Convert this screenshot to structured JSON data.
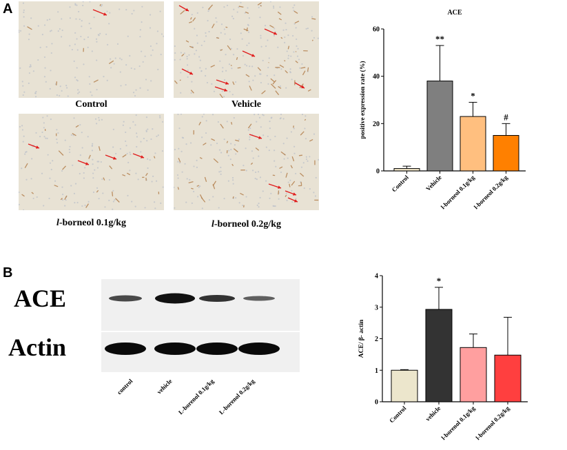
{
  "panel_a": {
    "letter": "A",
    "images": [
      {
        "label_prefix": "",
        "label_main": "Control"
      },
      {
        "label_prefix": "",
        "label_main": "Vehicle"
      },
      {
        "label_prefix": "l",
        "label_main": "-borneol 0.1g/kg"
      },
      {
        "label_prefix": "l",
        "label_main": "-borneol 0.2g/kg"
      }
    ]
  },
  "panel_b": {
    "letter": "B",
    "blot_rows": [
      "ACE",
      "Actin"
    ],
    "lanes": [
      "control",
      "vehicle",
      "L-borenol 0.1g/kg",
      "L-borenol 0.2g/kg"
    ]
  },
  "chart_data": [
    {
      "type": "bar",
      "title": "ACE",
      "ylabel": "positive expression rate (%)",
      "xlabel": "",
      "categories": [
        "Control",
        "Vehicle",
        "l-borneol 0.1g/kg",
        "l-borneol 0.2g/kg"
      ],
      "values": [
        1.0,
        38.0,
        23.0,
        15.0
      ],
      "errors": [
        1.0,
        15.0,
        6.0,
        5.0
      ],
      "annotations": [
        "",
        "**",
        "*",
        "#"
      ],
      "colors": [
        "#f2e6c8",
        "#7f7f7f",
        "#ffbf7f",
        "#ff8000"
      ],
      "ylim": [
        0,
        60
      ],
      "yticks": [
        0,
        20,
        40,
        60
      ]
    },
    {
      "type": "bar",
      "title": "",
      "ylabel": "ACE/ β- actin",
      "xlabel": "",
      "categories": [
        "Control",
        "vehicle",
        "l-borenol 0.1g/kg",
        "l-borenol 0.2g/kg"
      ],
      "values": [
        1.0,
        2.93,
        1.72,
        1.48
      ],
      "errors": [
        0.02,
        0.7,
        0.43,
        1.2
      ],
      "annotations": [
        "",
        "*",
        "",
        ""
      ],
      "colors": [
        "#ece6cc",
        "#333333",
        "#ff9f9f",
        "#ff3f3f"
      ],
      "ylim": [
        0,
        4
      ],
      "yticks": [
        0,
        1,
        2,
        3,
        4
      ]
    }
  ]
}
